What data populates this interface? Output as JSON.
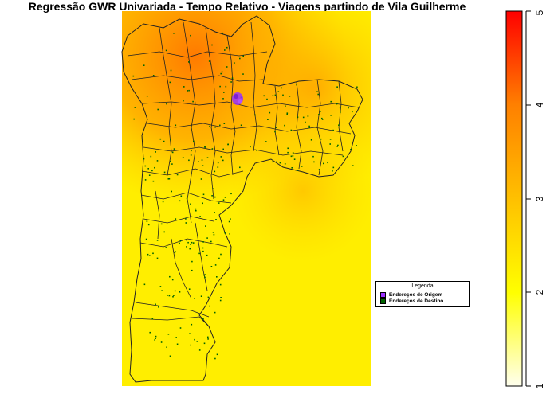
{
  "map": {
    "title": "Regressão GWR Univariada - Tempo Relativo - Viagens partindo de Vila Guilherme",
    "colors": {
      "surface_low": "#ffff00",
      "surface_high": "#ff6a00",
      "boundary": "#222222",
      "origin_points": "#9b30ff",
      "destination_points": "#006400"
    }
  },
  "legend": {
    "title": "Legenda",
    "items": [
      {
        "label": "Endereços de Origem",
        "color": "#9b30ff"
      },
      {
        "label": "Endereços de Destino",
        "color": "#006400"
      }
    ]
  },
  "colorbar": {
    "min": 1,
    "max": 5,
    "ticks": [
      "1",
      "2",
      "3",
      "4",
      "5"
    ],
    "gradient": [
      "#ffffee",
      "#ffff00",
      "#ffc000",
      "#ff8000",
      "#ff0000"
    ]
  }
}
